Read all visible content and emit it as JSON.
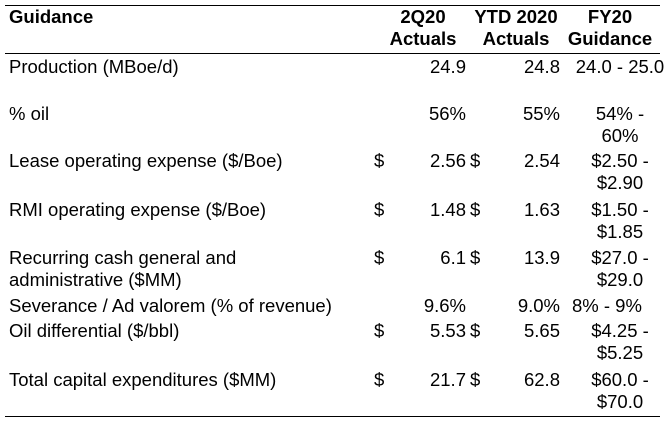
{
  "header": {
    "guidance": "Guidance",
    "col1": [
      "2Q20",
      "Actuals"
    ],
    "col2": [
      "YTD 2020",
      "Actuals"
    ],
    "col3": [
      "FY20",
      "Guidance"
    ]
  },
  "rows": [
    {
      "label": "Production (MBoe/d)",
      "cur1": "",
      "v1": "24.9",
      "cur2": "",
      "v2": "24.8",
      "g": "24.0 - 25.0"
    },
    {
      "label": "% oil",
      "cur1": "",
      "v1": "56%",
      "cur2": "",
      "v2": "55%",
      "g": "54% - 60%"
    },
    {
      "label": "Lease operating expense ($/Boe)",
      "cur1": "$",
      "v1": "2.56",
      "cur2": "$",
      "v2": "2.54",
      "g": "$2.50 - $2.90"
    },
    {
      "label": "RMI operating expense ($/Boe)",
      "cur1": "$",
      "v1": "1.48",
      "cur2": "$",
      "v2": "1.63",
      "g": "$1.50 - $1.85"
    },
    {
      "label": "Recurring cash general and administrative ($MM)",
      "cur1": "$",
      "v1": "6.1",
      "cur2": "$",
      "v2": "13.9",
      "g": "$27.0 - $29.0"
    },
    {
      "label": "Severance / Ad valorem (% of revenue)",
      "cur1": "",
      "v1": "9.6%",
      "cur2": "",
      "v2": "9.0%",
      "g": "8% - 9%"
    },
    {
      "label": "Oil differential ($/bbl)",
      "cur1": "$",
      "v1": "5.53",
      "cur2": "$",
      "v2": "5.65",
      "g": "$4.25 - $5.25"
    },
    {
      "label": "Total capital expenditures ($MM)",
      "cur1": "$",
      "v1": "21.7",
      "cur2": "$",
      "v2": "62.8",
      "g": "$60.0 - $70.0"
    }
  ]
}
